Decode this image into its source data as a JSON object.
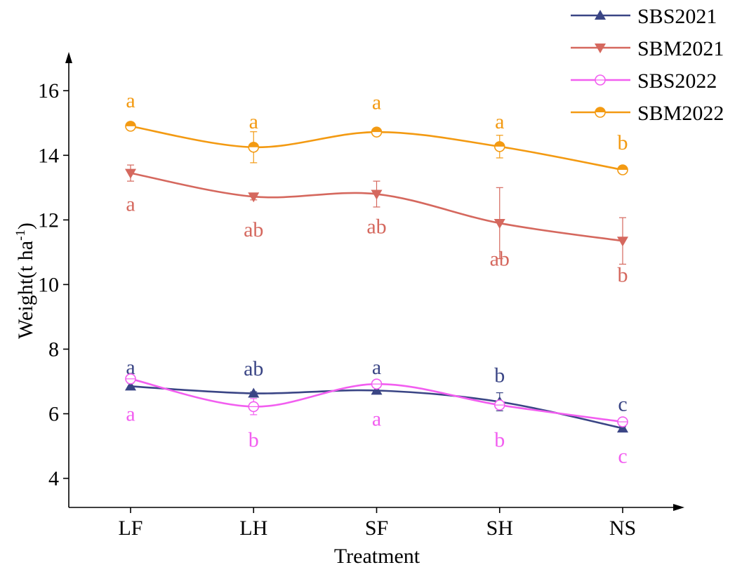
{
  "chart_data": {
    "type": "line",
    "xlabel": "Treatment",
    "ylabel": "Weight(t ha",
    "ylabel_sup": "-1",
    "ylabel_end": ")",
    "categories": [
      "LF",
      "LH",
      "SF",
      "SH",
      "NS"
    ],
    "yticks": [
      4,
      6,
      8,
      10,
      12,
      14,
      16
    ],
    "ylim": [
      3.1,
      17.2
    ],
    "series": [
      {
        "name": "SBS2021",
        "marker": "triangle-up",
        "color": "#3a4585",
        "values": [
          6.85,
          6.63,
          6.72,
          6.37,
          5.55
        ],
        "errors": [
          0.1,
          0.05,
          0.1,
          0.28,
          0.05
        ],
        "letters": [
          "a",
          "ab",
          "a",
          "b",
          "c"
        ],
        "letter_values": [
          7.45,
          7.4,
          7.45,
          7.2,
          6.3
        ]
      },
      {
        "name": "SBM2021",
        "marker": "triangle-down",
        "color": "#d5685e",
        "values": [
          13.45,
          12.72,
          12.8,
          11.9,
          11.35
        ],
        "errors": [
          0.25,
          0.1,
          0.4,
          1.1,
          0.72
        ],
        "letters": [
          "a",
          "ab",
          "ab",
          "ab",
          "b"
        ],
        "letter_values": [
          12.5,
          11.7,
          11.8,
          10.8,
          10.3
        ]
      },
      {
        "name": "SBS2022",
        "marker": "circle-open",
        "color": "#f25ef0",
        "values": [
          7.08,
          6.22,
          6.92,
          6.27,
          5.75
        ],
        "errors": [
          0.1,
          0.25,
          0.1,
          0.1,
          0.1
        ],
        "letters": [
          "a",
          "b",
          "a",
          "b",
          "c"
        ],
        "letter_values": [
          6.0,
          5.2,
          5.85,
          5.2,
          4.7
        ]
      },
      {
        "name": "SBM2022",
        "marker": "circle-half",
        "color": "#f39a12",
        "values": [
          14.9,
          14.25,
          14.72,
          14.27,
          13.55
        ],
        "errors": [
          0.05,
          0.48,
          0.05,
          0.35,
          0.05
        ],
        "letters": [
          "a",
          "a",
          "a",
          "a",
          "b"
        ],
        "letter_values": [
          15.7,
          15.05,
          15.65,
          15.05,
          14.4
        ]
      }
    ],
    "legend": "top-right"
  }
}
